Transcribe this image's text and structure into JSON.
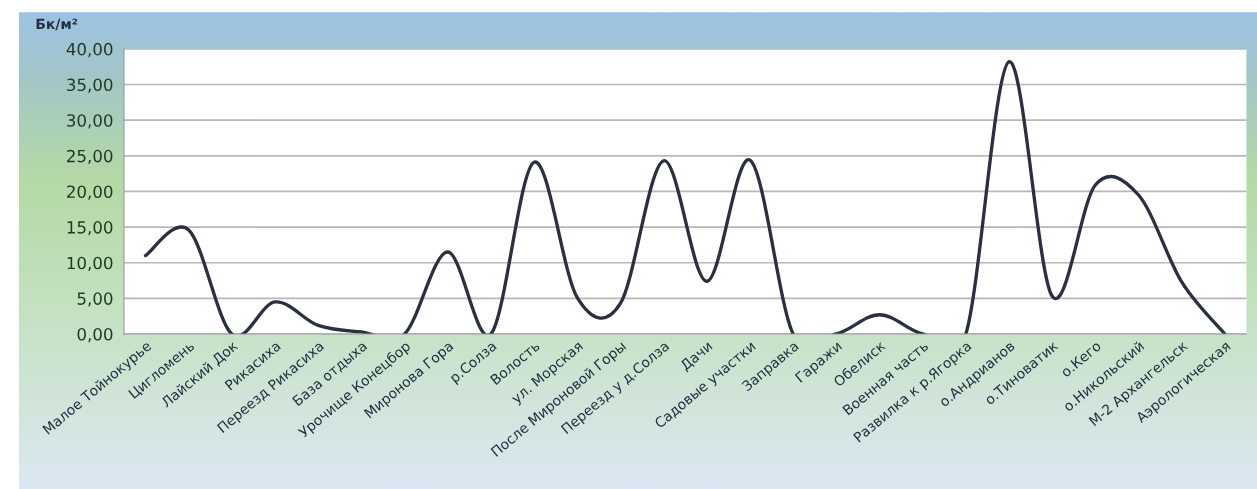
{
  "chart_data": {
    "type": "line",
    "ylabel": "Бк/м²",
    "categories": [
      "Малое Тойнокурье",
      "Цигломень",
      "Лайский Док",
      "Рикасиха",
      "Переезд Рикасиха",
      "База отдыха",
      "Урочище Конецбор",
      "Миронова Гора",
      "р.Солза",
      "Волость",
      "ул. Морская",
      "После Мироновой Горы",
      "Переезд у д.Солза",
      "Дачи",
      "Садовые участки",
      "Заправка",
      "Гаражи",
      "Обелиск",
      "Военная часть",
      "Развилка к р.Ягорка",
      "о.Андрианов",
      "о.Тиноватик",
      "о.Кего",
      "о.Никольский",
      "М-2 Архангельск",
      "Аэрологическая"
    ],
    "series": [
      {
        "color": "#2b3040",
        "values": [
          11.0,
          14.6,
          0,
          4.5,
          1.2,
          0.3,
          0,
          11.5,
          0,
          24.1,
          5.1,
          4.3,
          24.3,
          7.4,
          24.4,
          0,
          0,
          2.7,
          0,
          0,
          38.2,
          5.3,
          20.9,
          19.5,
          7.3,
          0
        ]
      }
    ],
    "ylim": [
      0,
      40
    ],
    "yticks": [
      {
        "value": 0,
        "label": "0,00"
      },
      {
        "value": 5,
        "label": "5,00"
      },
      {
        "value": 10,
        "label": "10,00"
      },
      {
        "value": 15,
        "label": "15,00"
      },
      {
        "value": 20,
        "label": "20,00"
      },
      {
        "value": 25,
        "label": "25,00"
      },
      {
        "value": 30,
        "label": "30,00"
      },
      {
        "value": 35,
        "label": "35,00"
      },
      {
        "value": 40,
        "label": "40,00"
      }
    ],
    "grid": "y",
    "marker": "none",
    "line_style": "solid"
  }
}
